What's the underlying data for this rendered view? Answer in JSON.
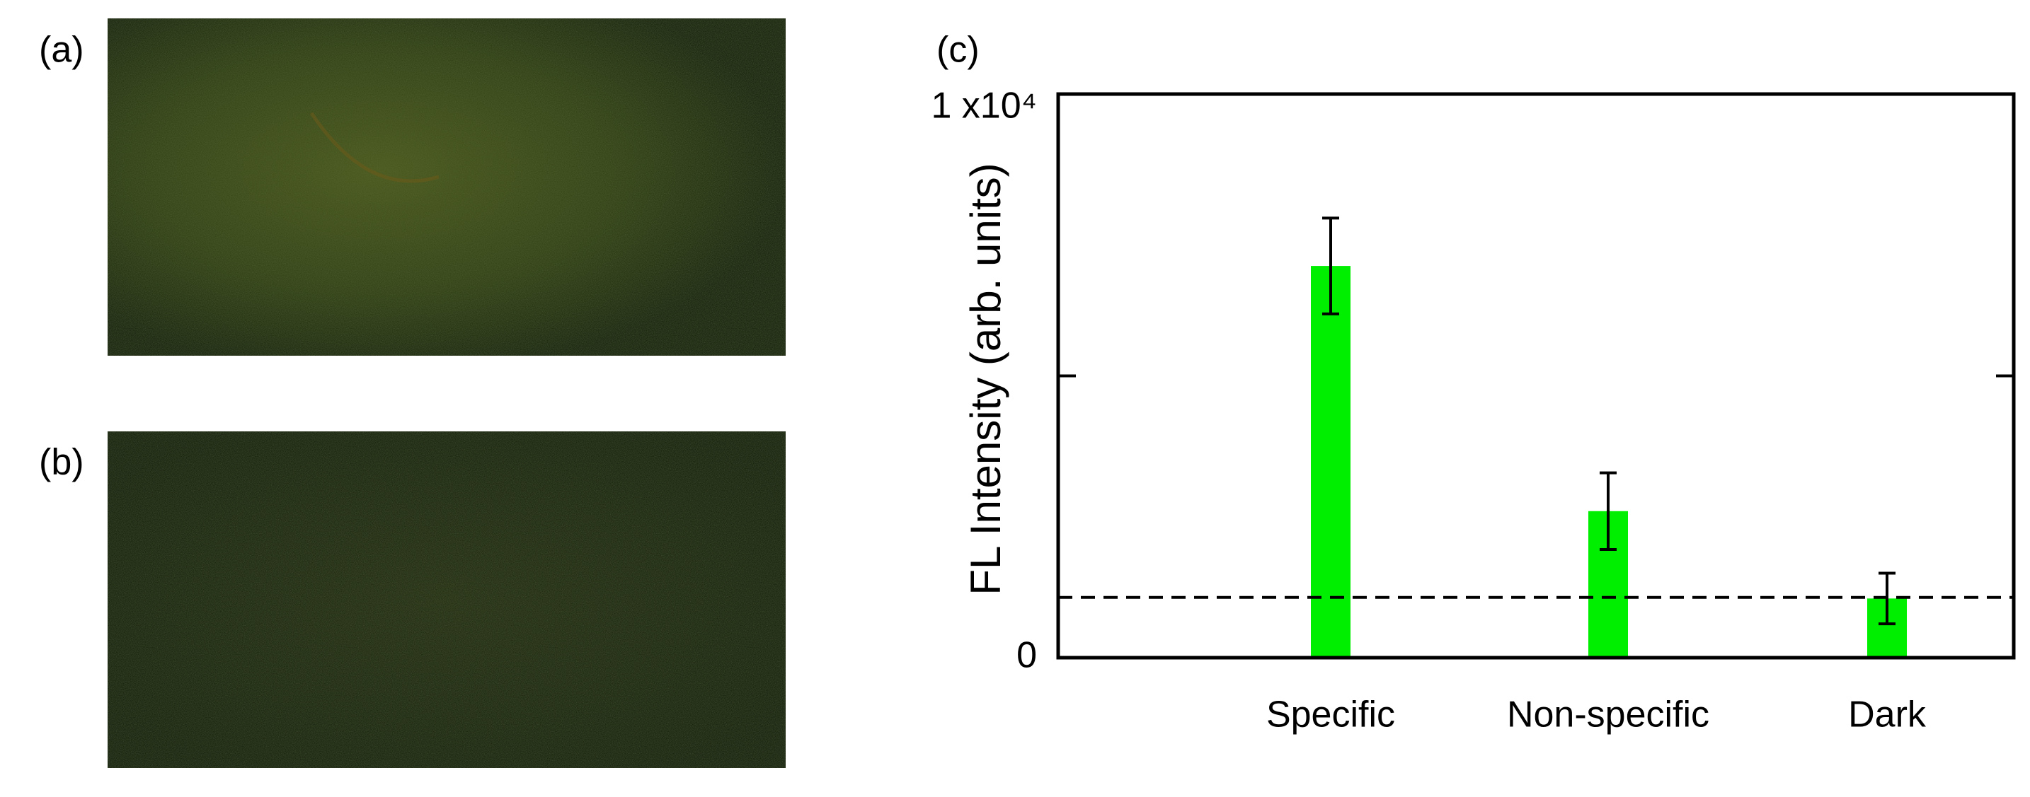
{
  "panel_labels": [
    "(a)",
    "(b)"
  ],
  "chart_data": {
    "type": "bar",
    "panel_label": "(c)",
    "ylabel": "FL Intensity (arb. units)",
    "categories": [
      "Specific",
      "Non-specific",
      "Dark"
    ],
    "values": [
      6950,
      2600,
      1050
    ],
    "errors": [
      850,
      680,
      450
    ],
    "color": "#00ee00",
    "ylim": [
      0,
      10000
    ],
    "yticks": [
      0,
      {
        "value": 10000,
        "label": "1 x10⁴"
      }
    ],
    "minor_yticks": [
      5000
    ],
    "threshold": 1070
  }
}
